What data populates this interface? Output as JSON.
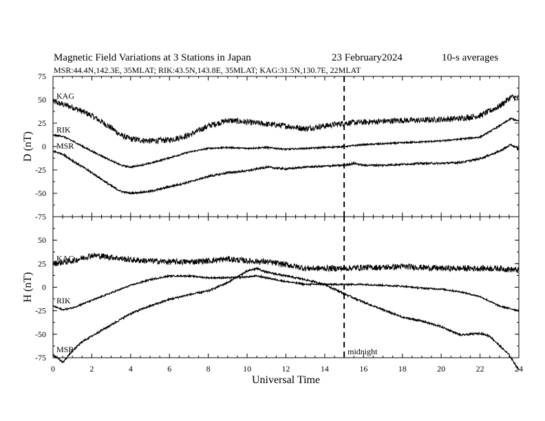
{
  "header": {
    "title": "Magnetic Field Variations at 3 Stations in Japan",
    "date": "23 February2024",
    "averaging": "10-s averages",
    "stations_line": "MSR:44.4N,142.3E, 35MLAT;  RIK:43.5N,143.8E, 35MLAT;  KAG:31.5N,130.7E, 22MLAT"
  },
  "midnight_label": "midnight",
  "chart_data": [
    {
      "type": "line",
      "panel": "D",
      "ylabel": "D (nT)",
      "xlabel": "",
      "xlim": [
        0,
        24
      ],
      "ylim": [
        -75,
        75
      ],
      "xticks": [
        0,
        2,
        4,
        6,
        8,
        10,
        12,
        14,
        16,
        18,
        20,
        22,
        24
      ],
      "yticks": [
        75,
        50,
        25,
        0,
        -25,
        -50,
        -75
      ],
      "marker_x": 15,
      "series": [
        {
          "name": "KAG",
          "x": [
            0,
            1,
            2,
            3,
            3.5,
            4,
            5,
            6,
            7,
            8,
            9,
            10,
            11,
            12,
            13,
            14,
            15,
            16,
            17,
            18,
            19,
            20,
            21,
            22,
            23,
            23.6,
            24
          ],
          "y": [
            48,
            42,
            33,
            20,
            12,
            8,
            6,
            7,
            12,
            22,
            28,
            26,
            24,
            22,
            19,
            22,
            25,
            26,
            27,
            28,
            28,
            29,
            30,
            33,
            43,
            53,
            52
          ]
        },
        {
          "name": "RIK",
          "x": [
            0,
            0.5,
            1,
            2,
            3,
            3.5,
            4,
            5,
            6,
            7,
            8,
            9,
            10,
            11,
            12,
            13,
            14,
            15,
            16,
            17,
            18,
            19,
            20,
            21,
            22,
            23,
            23.6,
            24
          ],
          "y": [
            12,
            11,
            6,
            -5,
            -15,
            -20,
            -22,
            -18,
            -12,
            -6,
            -2,
            -1,
            -2,
            -1,
            -3,
            -2,
            -1,
            0,
            2,
            3,
            4,
            5,
            6,
            8,
            10,
            22,
            30,
            27
          ]
        },
        {
          "name": "MSR",
          "x": [
            0,
            0.5,
            1,
            2,
            3,
            3.5,
            4,
            5,
            6,
            7,
            8,
            9,
            10,
            11,
            12,
            13,
            14,
            15,
            15.5,
            16,
            17,
            18,
            19,
            20,
            21,
            22,
            23,
            23.6,
            24
          ],
          "y": [
            -5,
            -8,
            -15,
            -28,
            -42,
            -48,
            -50,
            -48,
            -43,
            -38,
            -32,
            -28,
            -26,
            -22,
            -24,
            -22,
            -21,
            -20,
            -18,
            -20,
            -20,
            -19,
            -18,
            -18,
            -17,
            -13,
            -5,
            2,
            -3
          ]
        }
      ]
    },
    {
      "type": "line",
      "panel": "H",
      "ylabel": "H (nT)",
      "xlabel": "Universal Time",
      "xlim": [
        0,
        24
      ],
      "ylim": [
        -75,
        75
      ],
      "xticks": [
        0,
        2,
        4,
        6,
        8,
        10,
        12,
        14,
        16,
        18,
        20,
        22,
        24
      ],
      "yticks": [
        75,
        50,
        25,
        0,
        -25,
        -50,
        -75
      ],
      "marker_x": 15,
      "series": [
        {
          "name": "KAG",
          "x": [
            0,
            1,
            2,
            3,
            4,
            5,
            6,
            7,
            8,
            9,
            10,
            11,
            12,
            13,
            14,
            15,
            16,
            17,
            18,
            19,
            20,
            21,
            22,
            23,
            24
          ],
          "y": [
            25,
            28,
            34,
            32,
            29,
            28,
            27,
            27,
            28,
            30,
            28,
            27,
            24,
            20,
            20,
            20,
            21,
            21,
            22,
            21,
            20,
            20,
            20,
            20,
            18
          ]
        },
        {
          "name": "RIK",
          "x": [
            0,
            0.5,
            1,
            2,
            3,
            4,
            5,
            6,
            7,
            8,
            9,
            10,
            10.5,
            11,
            12,
            13,
            14,
            15,
            16,
            17,
            18,
            19,
            20,
            21,
            22,
            22.5,
            23,
            24
          ],
          "y": [
            -20,
            -24,
            -22,
            -14,
            -6,
            2,
            8,
            12,
            12,
            10,
            10,
            11,
            12,
            10,
            6,
            3,
            3,
            3,
            3,
            2,
            1,
            -1,
            -2,
            -5,
            -10,
            -15,
            -20,
            -25
          ]
        },
        {
          "name": "MSR",
          "x": [
            0,
            0.3,
            0.5,
            1,
            1.5,
            2,
            3,
            4,
            5,
            6,
            7,
            8,
            9,
            10,
            10.5,
            11,
            12,
            13,
            14,
            15,
            16,
            17,
            18,
            19,
            20,
            21,
            22,
            22.5,
            23,
            23.5,
            24
          ],
          "y": [
            -72,
            -76,
            -80,
            -68,
            -58,
            -52,
            -40,
            -28,
            -20,
            -13,
            -8,
            -4,
            5,
            17,
            20,
            16,
            12,
            8,
            3,
            -7,
            -16,
            -24,
            -32,
            -36,
            -42,
            -51,
            -49,
            -52,
            -62,
            -72,
            -88
          ]
        }
      ]
    }
  ]
}
